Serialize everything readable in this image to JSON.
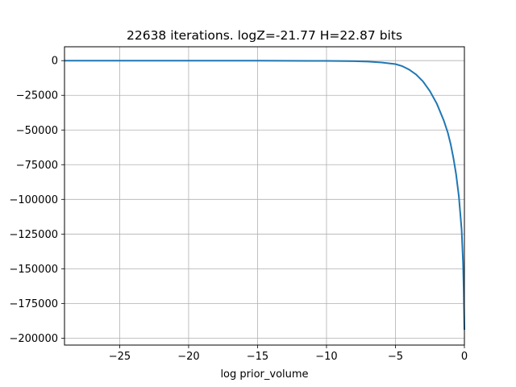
{
  "chart_data": {
    "type": "line",
    "title": "22638 iterations. logZ=-21.77 H=22.87 bits",
    "xlabel": "log prior_volume",
    "ylabel": "",
    "xlim": [
      -29,
      0
    ],
    "ylim": [
      -205000,
      10000
    ],
    "grid": true,
    "x_ticks": [
      -25,
      -20,
      -15,
      -10,
      -5,
      0
    ],
    "x_tick_labels": [
      "−25",
      "−20",
      "−15",
      "−10",
      "−5",
      "0"
    ],
    "y_ticks": [
      0,
      -25000,
      -50000,
      -75000,
      -100000,
      -125000,
      -150000,
      -175000,
      -200000
    ],
    "y_tick_labels": [
      "0",
      "−25000",
      "−50000",
      "−75000",
      "−100000",
      "−125000",
      "−150000",
      "−175000",
      "−200000"
    ],
    "series": [
      {
        "name": "",
        "color": "#1f77b4",
        "x": [
          -29,
          -25,
          -20,
          -15,
          -10,
          -8,
          -7,
          -6,
          -5,
          -4.5,
          -4,
          -3.5,
          -3,
          -2.5,
          -2,
          -1.5,
          -1.2,
          -1.0,
          -0.8,
          -0.6,
          -0.4,
          -0.3,
          -0.2,
          -0.1,
          -0.05,
          0
        ],
        "y": [
          0,
          0,
          0,
          0,
          -200,
          -400,
          -700,
          -1300,
          -2500,
          -4000,
          -6500,
          -10000,
          -15000,
          -22000,
          -31000,
          -43000,
          -52000,
          -60000,
          -70000,
          -82000,
          -98000,
          -110000,
          -122000,
          -145000,
          -165000,
          -194000
        ]
      }
    ]
  }
}
